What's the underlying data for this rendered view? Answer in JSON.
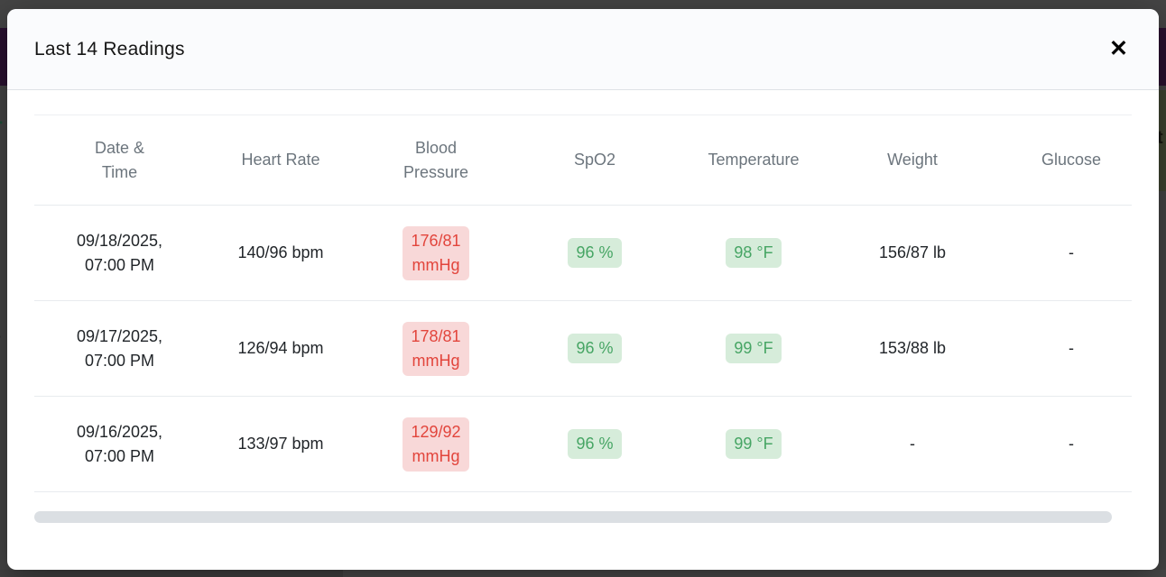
{
  "modal": {
    "title": "Last 14 Readings",
    "close_glyph": "✕"
  },
  "table": {
    "columns": [
      "Date &\nTime",
      "Heart Rate",
      "Blood\nPressure",
      "SpO2",
      "Temperature",
      "Weight",
      "Glucose"
    ],
    "rows": [
      {
        "datetime": "09/18/2025,\n07:00 PM",
        "heart_rate": "140/96 bpm",
        "blood_pressure": "176/81\nmmHg",
        "blood_pressure_status": "danger",
        "spo2": "96 %",
        "spo2_status": "success",
        "temperature": "98 °F",
        "temperature_status": "success",
        "weight": "156/87 lb",
        "glucose": "-"
      },
      {
        "datetime": "09/17/2025,\n07:00 PM",
        "heart_rate": "126/94 bpm",
        "blood_pressure": "178/81\nmmHg",
        "blood_pressure_status": "danger",
        "spo2": "96 %",
        "spo2_status": "success",
        "temperature": "99 °F",
        "temperature_status": "success",
        "weight": "153/88 lb",
        "glucose": "-"
      },
      {
        "datetime": "09/16/2025,\n07:00 PM",
        "heart_rate": "133/97 bpm",
        "blood_pressure": "129/92\nmmHg",
        "blood_pressure_status": "danger",
        "spo2": "96 %",
        "spo2_status": "success",
        "temperature": "99 °F",
        "temperature_status": "success",
        "weight": "-",
        "glucose": "-"
      }
    ]
  },
  "colors": {
    "danger_text": "#e2453c",
    "danger_bg": "#f8d8d8",
    "success_text": "#46a564",
    "success_bg": "#d6ecda",
    "header_text": "#6c757d",
    "body_text": "#212529",
    "backdrop_navbar": "#2a1130"
  },
  "backdrop": {
    "fragment_t_green": "T",
    "fragment_s": "s",
    "fragment_c": "c",
    "fragment_t_right": "t"
  }
}
